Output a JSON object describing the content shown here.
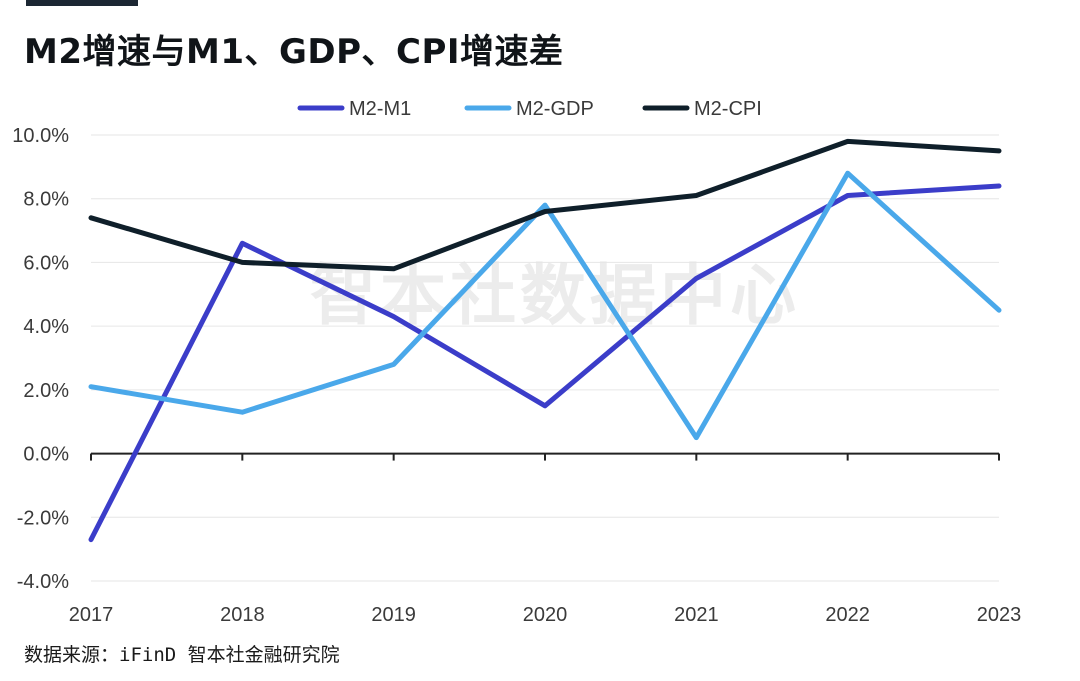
{
  "title": "M2增速与M1、GDP、CPI增速差",
  "watermark": "智本社数据中心",
  "source": "数据来源：iFinD 智本社金融研究院",
  "chart_data": {
    "type": "line",
    "title": "M2增速与M1、GDP、CPI增速差",
    "x": [
      "2017",
      "2018",
      "2019",
      "2020",
      "2021",
      "2022",
      "2023"
    ],
    "ylim": [
      -4,
      10
    ],
    "yticks": [
      -4,
      -2,
      0,
      2,
      4,
      6,
      8,
      10
    ],
    "ytick_labels": [
      "-4.0%",
      "-2.0%",
      "0.0%",
      "2.0%",
      "4.0%",
      "6.0%",
      "8.0%",
      "10.0%"
    ],
    "grid": true,
    "legend_position": "top",
    "series": [
      {
        "name": "M2-M1",
        "color": "#3b3dc9",
        "values": [
          -2.7,
          6.6,
          4.3,
          1.5,
          5.5,
          8.1,
          8.4
        ]
      },
      {
        "name": "M2-GDP",
        "color": "#4aa8ea",
        "values": [
          2.1,
          1.3,
          2.8,
          7.8,
          0.5,
          8.8,
          4.5
        ]
      },
      {
        "name": "M2-CPI",
        "color": "#0f1f2a",
        "values": [
          7.4,
          6.0,
          5.8,
          7.6,
          8.1,
          9.8,
          9.5
        ]
      }
    ]
  }
}
